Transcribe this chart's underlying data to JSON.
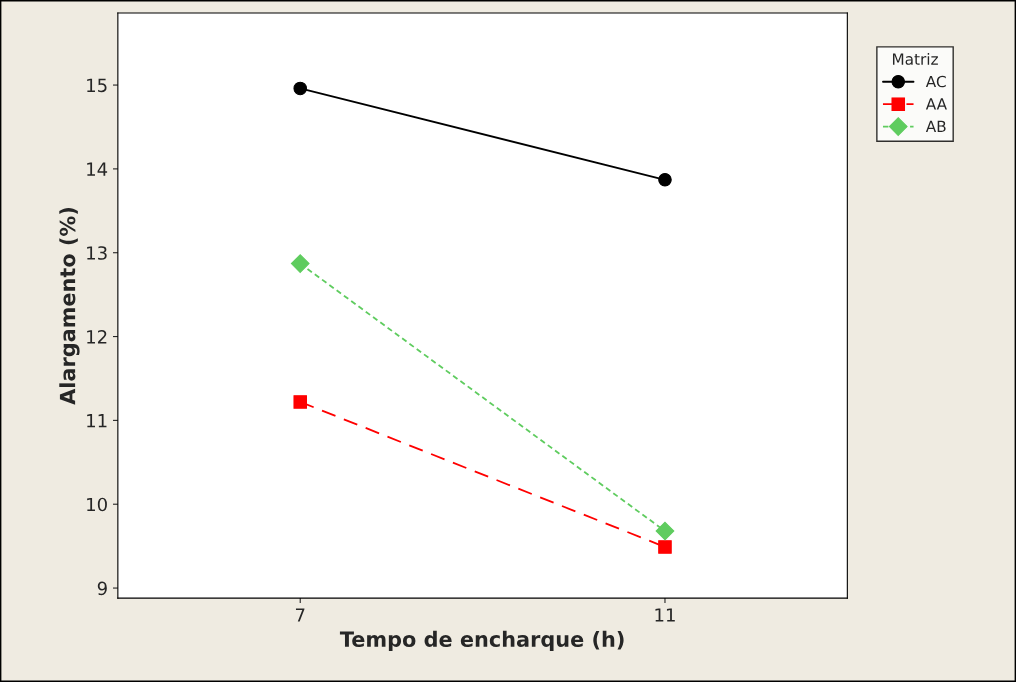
{
  "chart_data": {
    "type": "line",
    "xlabel": "Tempo de encharque (h)",
    "ylabel": "Alargamento (%)",
    "legend_title": "Matriz",
    "legend": "top right",
    "categories": [
      "7",
      "11"
    ],
    "series": [
      {
        "name": "AC",
        "color": "#000000",
        "values": [
          14.96,
          13.87
        ],
        "marker": "circle",
        "line_style": "solid"
      },
      {
        "name": "AA",
        "color": "#ff0000",
        "values": [
          11.22,
          9.49
        ],
        "marker": "square",
        "line_style": "dashed"
      },
      {
        "name": "AB",
        "color": "#5fcc5f",
        "values": [
          12.87,
          9.68
        ],
        "marker": "diamond",
        "line_style": "dotted"
      }
    ],
    "ylim": [
      8.88,
      15.86
    ],
    "yticks": [
      9,
      10,
      11,
      12,
      13,
      14,
      15
    ],
    "grid": false
  }
}
